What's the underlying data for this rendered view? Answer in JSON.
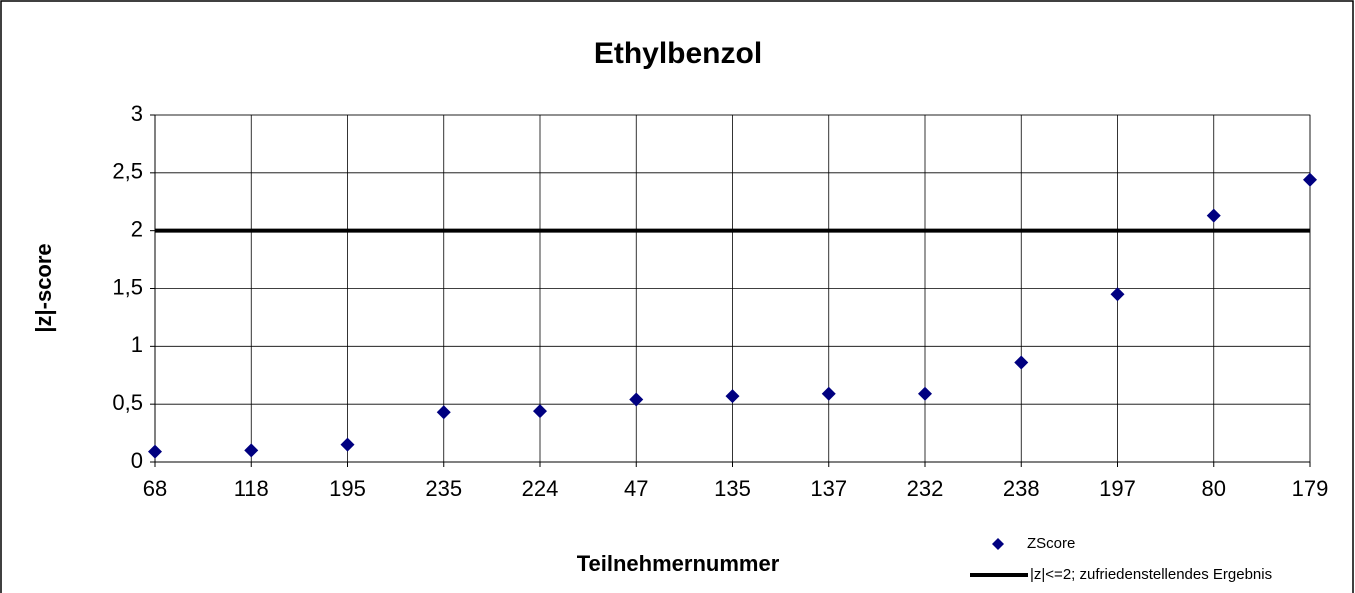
{
  "chart_data": {
    "type": "scatter",
    "title": "Ethylbenzol",
    "x_label": "Teilnehmernummer",
    "y_label": "|z|-score",
    "categories": [
      "68",
      "118",
      "195",
      "235",
      "224",
      "47",
      "135",
      "137",
      "232",
      "238",
      "197",
      "80",
      "179"
    ],
    "series": [
      {
        "name": "ZScore",
        "color": "#000080",
        "style": "marker",
        "values": [
          0.09,
          0.1,
          0.15,
          0.43,
          0.44,
          0.54,
          0.57,
          0.59,
          0.59,
          0.86,
          1.45,
          2.13,
          2.44
        ]
      },
      {
        "name": "|z|<=2; zufriedenstellendes Ergebnis",
        "color": "#000000",
        "style": "line",
        "values": [
          2,
          2,
          2,
          2,
          2,
          2,
          2,
          2,
          2,
          2,
          2,
          2,
          2
        ]
      }
    ],
    "ylim": [
      0,
      3
    ],
    "yticks": [
      0,
      {
        "value": 0.5,
        "label": "0,5"
      },
      1,
      {
        "value": 1.5,
        "label": "1,5"
      },
      2,
      {
        "value": 2.5,
        "label": "2,5"
      },
      3
    ],
    "grid": true,
    "legend": "bottom-right"
  }
}
